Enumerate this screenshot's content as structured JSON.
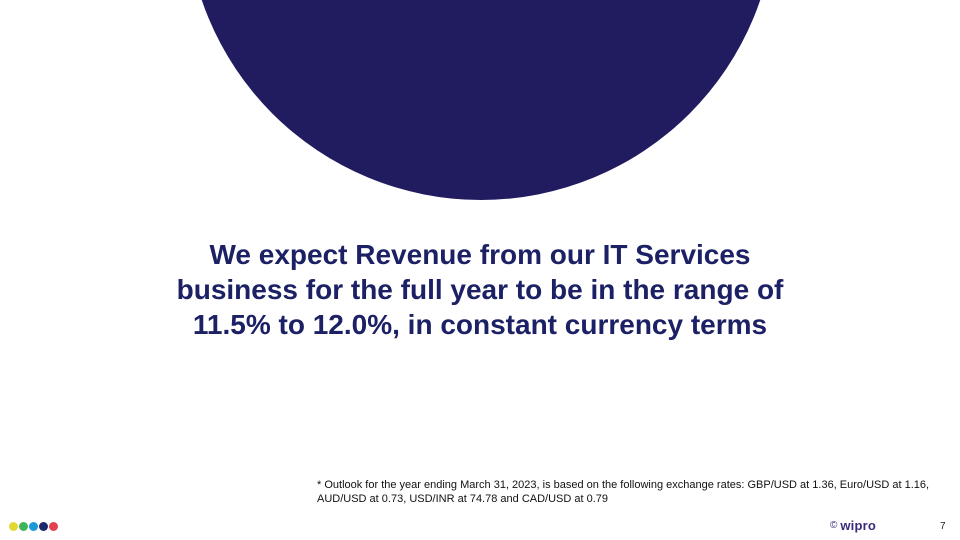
{
  "slide": {
    "headline_lines": [
      "We expect Revenue from our IT Services",
      "business for the full year to be in the range of",
      "11.5% to 12.0%, in constant currency terms"
    ],
    "footnote_lines": [
      "* Outlook for the year ending March 31, 2023, is based on the following exchange rates: GBP/USD at 1.36, Euro/USD at 1.16,",
      "AUD/USD at 0.73, USD/INR at 74.78 and CAD/USD at 0.79"
    ],
    "page_number": "7"
  },
  "footer": {
    "copyright_symbol": "©",
    "brand_name": "wipro",
    "dot_colors": [
      "#e2d831",
      "#3fb55a",
      "#1d9ad6",
      "#1d2a6e",
      "#e2424f"
    ]
  },
  "colors": {
    "accent_navy": "#201c5f",
    "headline_text": "#1c2064",
    "brand_purple": "#3b2a7a"
  }
}
